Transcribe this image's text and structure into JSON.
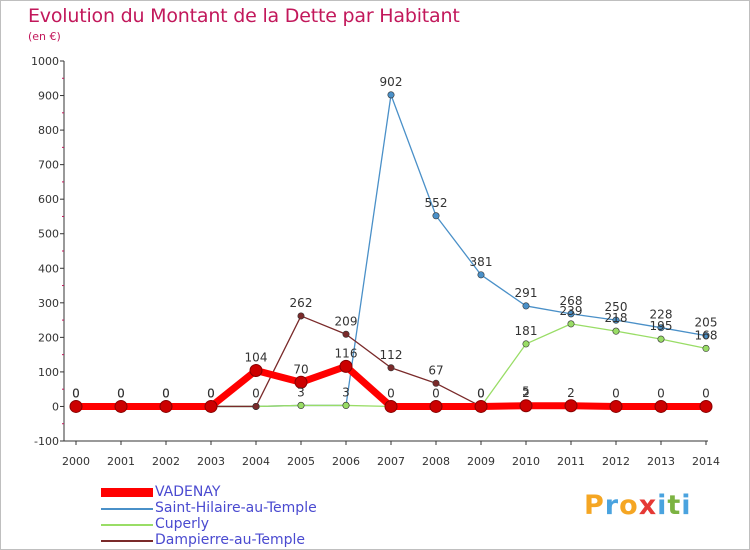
{
  "title": "Evolution du Montant de la Dette par Habitant",
  "subtitle": "(en €)",
  "brand": {
    "text": "Proxiti",
    "letters": [
      "P",
      "r",
      "o",
      "x",
      "i",
      "t",
      "i"
    ],
    "colors": [
      "#f5a623",
      "#4aa3df",
      "#f5a623",
      "#e53935",
      "#4aa3df",
      "#7cb342",
      "#4aa3df"
    ]
  },
  "chart_data": {
    "type": "line",
    "x": [
      2000,
      2001,
      2002,
      2003,
      2004,
      2005,
      2006,
      2007,
      2008,
      2009,
      2010,
      2011,
      2012,
      2013,
      2014
    ],
    "ylim": [
      -100,
      1000
    ],
    "yticks": [
      -100,
      0,
      100,
      200,
      300,
      400,
      500,
      600,
      700,
      800,
      900,
      1000
    ],
    "grid": false,
    "legend_position": "bottom-left",
    "series": [
      {
        "name": "VADENAY",
        "color": "#ff0000",
        "values": [
          0,
          0,
          0,
          0,
          104,
          70,
          116,
          0,
          0,
          0,
          2,
          2,
          0,
          0,
          0
        ]
      },
      {
        "name": "Saint-Hilaire-au-Temple",
        "color": "#4a90c8",
        "values": [
          0,
          0,
          0,
          0,
          0,
          3,
          3,
          902,
          552,
          381,
          291,
          268,
          250,
          228,
          205
        ]
      },
      {
        "name": "Cuperly",
        "color": "#99dd66",
        "values": [
          0,
          0,
          0,
          0,
          0,
          3,
          3,
          0,
          0,
          0,
          181,
          239,
          218,
          195,
          168
        ]
      },
      {
        "name": "Dampierre-au-Temple",
        "color": "#7a2a2a",
        "values": [
          0,
          0,
          0,
          0,
          0,
          262,
          209,
          112,
          67,
          0,
          5,
          0,
          0,
          0,
          0
        ]
      }
    ],
    "data_labels": [
      {
        "series": 0,
        "index": 0,
        "text": "0"
      },
      {
        "series": 0,
        "index": 1,
        "text": "0"
      },
      {
        "series": 0,
        "index": 2,
        "text": "0"
      },
      {
        "series": 0,
        "index": 3,
        "text": "0"
      },
      {
        "series": 0,
        "index": 4,
        "text": "104"
      },
      {
        "series": 0,
        "index": 5,
        "text": "70"
      },
      {
        "series": 0,
        "index": 6,
        "text": "116"
      },
      {
        "series": 0,
        "index": 7,
        "text": "0"
      },
      {
        "series": 0,
        "index": 8,
        "text": "0"
      },
      {
        "series": 0,
        "index": 9,
        "text": "0"
      },
      {
        "series": 0,
        "index": 10,
        "text": "2"
      },
      {
        "series": 0,
        "index": 11,
        "text": "2"
      },
      {
        "series": 0,
        "index": 12,
        "text": "0"
      },
      {
        "series": 0,
        "index": 13,
        "text": "0"
      },
      {
        "series": 0,
        "index": 14,
        "text": "0"
      },
      {
        "series": 1,
        "index": 7,
        "text": "902"
      },
      {
        "series": 1,
        "index": 8,
        "text": "552"
      },
      {
        "series": 1,
        "index": 9,
        "text": "381"
      },
      {
        "series": 1,
        "index": 10,
        "text": "291"
      },
      {
        "series": 1,
        "index": 11,
        "text": "268"
      },
      {
        "series": 1,
        "index": 12,
        "text": "250"
      },
      {
        "series": 1,
        "index": 13,
        "text": "228"
      },
      {
        "series": 1,
        "index": 14,
        "text": "205"
      },
      {
        "series": 1,
        "index": 5,
        "text": "3"
      },
      {
        "series": 1,
        "index": 6,
        "text": "3"
      },
      {
        "series": 2,
        "index": 10,
        "text": "181"
      },
      {
        "series": 2,
        "index": 11,
        "text": "239"
      },
      {
        "series": 2,
        "index": 12,
        "text": "218"
      },
      {
        "series": 2,
        "index": 13,
        "text": "195"
      },
      {
        "series": 2,
        "index": 14,
        "text": "168"
      },
      {
        "series": 3,
        "index": 5,
        "text": "262"
      },
      {
        "series": 3,
        "index": 6,
        "text": "209"
      },
      {
        "series": 3,
        "index": 7,
        "text": "112"
      },
      {
        "series": 3,
        "index": 8,
        "text": "67"
      },
      {
        "series": 3,
        "index": 0,
        "text": "0"
      },
      {
        "series": 3,
        "index": 1,
        "text": "0"
      },
      {
        "series": 3,
        "index": 2,
        "text": "0"
      },
      {
        "series": 3,
        "index": 3,
        "text": "0"
      },
      {
        "series": 3,
        "index": 4,
        "text": "0"
      },
      {
        "series": 3,
        "index": 9,
        "text": "0"
      },
      {
        "series": 3,
        "index": 10,
        "text": "5"
      }
    ]
  }
}
